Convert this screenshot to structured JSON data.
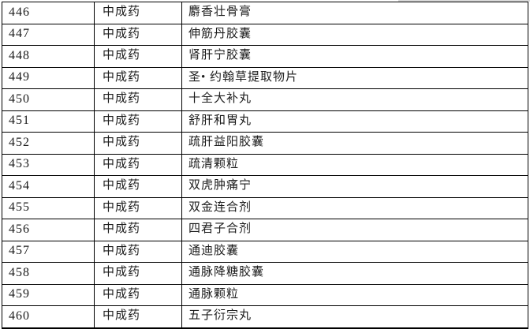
{
  "document": {
    "type": "table-fragment",
    "background_color": "#ffffff",
    "border_color": "#000000",
    "text_color": "#1c1c1c"
  },
  "table": {
    "columns": [
      "serial_number",
      "category",
      "drug_name"
    ],
    "rows": [
      {
        "serial_number": "446",
        "category": "中成药",
        "drug_name": "麝香壮骨膏"
      },
      {
        "serial_number": "447",
        "category": "中成药",
        "drug_name": "伸筋丹胶囊"
      },
      {
        "serial_number": "448",
        "category": "中成药",
        "drug_name": "肾肝宁胶囊"
      },
      {
        "serial_number": "449",
        "category": "中成药",
        "drug_name": "圣• 约翰草提取物片"
      },
      {
        "serial_number": "450",
        "category": "中成药",
        "drug_name": "十全大补丸"
      },
      {
        "serial_number": "451",
        "category": "中成药",
        "drug_name": "舒肝和胃丸"
      },
      {
        "serial_number": "452",
        "category": "中成药",
        "drug_name": "疏肝益阳胶囊"
      },
      {
        "serial_number": "453",
        "category": "中成药",
        "drug_name": "疏清颗粒"
      },
      {
        "serial_number": "454",
        "category": "中成药",
        "drug_name": "双虎肿痛宁"
      },
      {
        "serial_number": "455",
        "category": "中成药",
        "drug_name": "双金连合剂"
      },
      {
        "serial_number": "456",
        "category": "中成药",
        "drug_name": "四君子合剂"
      },
      {
        "serial_number": "457",
        "category": "中成药",
        "drug_name": "通迪胶囊"
      },
      {
        "serial_number": "458",
        "category": "中成药",
        "drug_name": "通脉降糖胶囊"
      },
      {
        "serial_number": "459",
        "category": "中成药",
        "drug_name": "通脉颗粒"
      },
      {
        "serial_number": "460",
        "category": "中成药",
        "drug_name": "五子衍宗丸"
      }
    ]
  }
}
